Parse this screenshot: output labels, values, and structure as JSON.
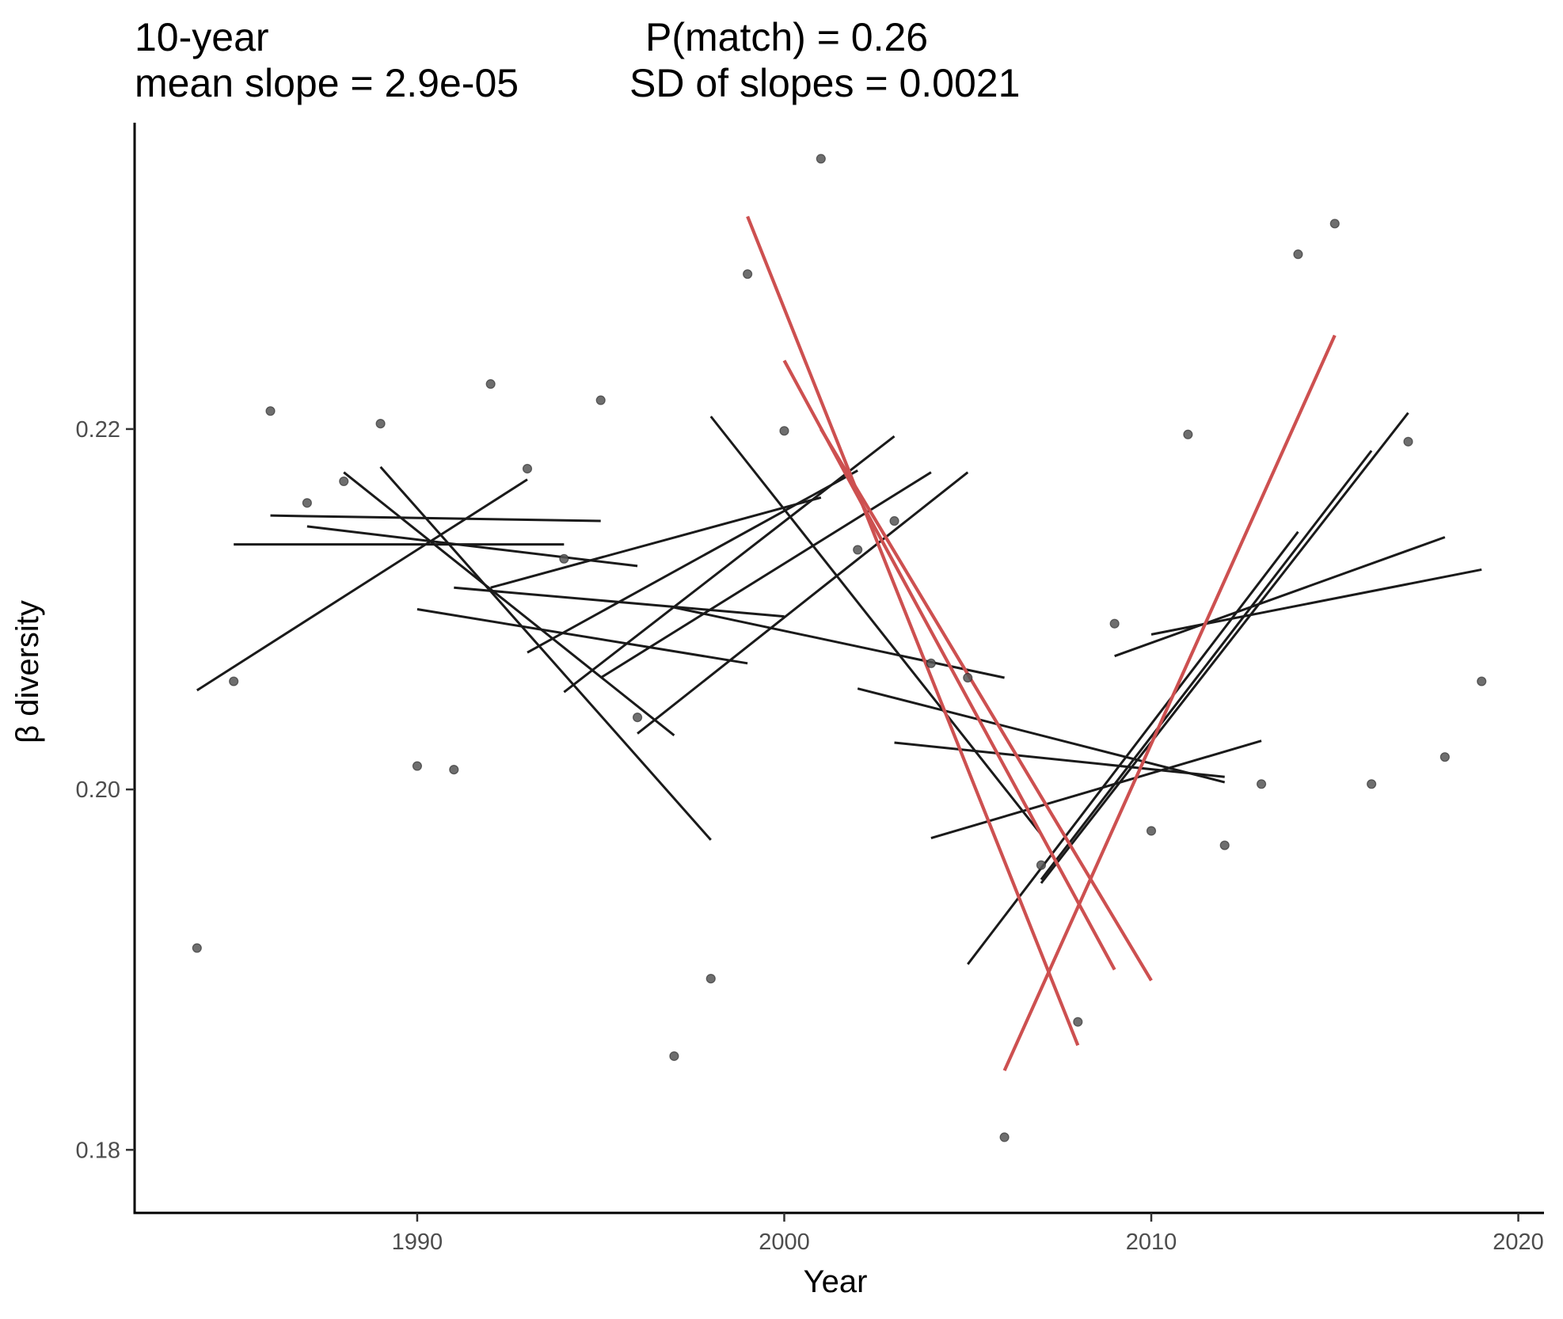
{
  "header": {
    "left1": "10-year",
    "right1": "P(match) = 0.26",
    "left2": "mean slope = 2.9e-05",
    "right2": "SD of slopes = 0.0021"
  },
  "chart_data": {
    "type": "scatter",
    "title": "",
    "xlabel": "Year",
    "ylabel": "β diversity",
    "xlim": [
      1982.3,
      2020.7
    ],
    "ylim": [
      0.1765,
      0.237
    ],
    "xticks": [
      1990,
      2000,
      2010,
      2020
    ],
    "yticks": [
      0.18,
      0.2,
      0.22
    ],
    "ytick_labels": [
      "0.18",
      "0.20",
      "0.22"
    ],
    "grid": false,
    "legend": "none",
    "colors": {
      "point": "#555555",
      "line": "#1a1a1a",
      "highlight": "#cd5050",
      "axis": "#000000"
    },
    "points": [
      {
        "x": 1984,
        "y": 0.1912
      },
      {
        "x": 1985,
        "y": 0.206
      },
      {
        "x": 1986,
        "y": 0.221
      },
      {
        "x": 1987,
        "y": 0.2159
      },
      {
        "x": 1988,
        "y": 0.2171
      },
      {
        "x": 1989,
        "y": 0.2203
      },
      {
        "x": 1990,
        "y": 0.2013
      },
      {
        "x": 1991,
        "y": 0.2011
      },
      {
        "x": 1992,
        "y": 0.2225
      },
      {
        "x": 1993,
        "y": 0.2178
      },
      {
        "x": 1994,
        "y": 0.2128
      },
      {
        "x": 1995,
        "y": 0.2216
      },
      {
        "x": 1996,
        "y": 0.204
      },
      {
        "x": 1997,
        "y": 0.1852
      },
      {
        "x": 1998,
        "y": 0.1895
      },
      {
        "x": 1999,
        "y": 0.2286
      },
      {
        "x": 2000,
        "y": 0.2199
      },
      {
        "x": 2001,
        "y": 0.235
      },
      {
        "x": 2002,
        "y": 0.2133
      },
      {
        "x": 2003,
        "y": 0.2149
      },
      {
        "x": 2004,
        "y": 0.207
      },
      {
        "x": 2005,
        "y": 0.2062
      },
      {
        "x": 2006,
        "y": 0.1807
      },
      {
        "x": 2007,
        "y": 0.1958
      },
      {
        "x": 2008,
        "y": 0.1871
      },
      {
        "x": 2009,
        "y": 0.2092
      },
      {
        "x": 2010,
        "y": 0.1977
      },
      {
        "x": 2011,
        "y": 0.2197
      },
      {
        "x": 2012,
        "y": 0.1969
      },
      {
        "x": 2013,
        "y": 0.2003
      },
      {
        "x": 2014,
        "y": 0.2297
      },
      {
        "x": 2015,
        "y": 0.2314
      },
      {
        "x": 2016,
        "y": 0.2003
      },
      {
        "x": 2017,
        "y": 0.2193
      },
      {
        "x": 2018,
        "y": 0.2018
      },
      {
        "x": 2019,
        "y": 0.206
      }
    ],
    "segments": [
      {
        "x0": 1984,
        "y0": 0.2055,
        "x1": 1993,
        "y1": 0.2172,
        "highlight": false
      },
      {
        "x0": 1985,
        "y0": 0.2136,
        "x1": 1994,
        "y1": 0.2136,
        "highlight": false
      },
      {
        "x0": 1986,
        "y0": 0.2152,
        "x1": 1995,
        "y1": 0.2149,
        "highlight": false
      },
      {
        "x0": 1987,
        "y0": 0.2146,
        "x1": 1996,
        "y1": 0.2124,
        "highlight": false
      },
      {
        "x0": 1988,
        "y0": 0.2176,
        "x1": 1997,
        "y1": 0.203,
        "highlight": false
      },
      {
        "x0": 1989,
        "y0": 0.2179,
        "x1": 1998,
        "y1": 0.1972,
        "highlight": false
      },
      {
        "x0": 1990,
        "y0": 0.21,
        "x1": 1999,
        "y1": 0.207,
        "highlight": false
      },
      {
        "x0": 1991,
        "y0": 0.2112,
        "x1": 2000,
        "y1": 0.2096,
        "highlight": false
      },
      {
        "x0": 1992,
        "y0": 0.2112,
        "x1": 2001,
        "y1": 0.2162,
        "highlight": false
      },
      {
        "x0": 1993,
        "y0": 0.2076,
        "x1": 2002,
        "y1": 0.2177,
        "highlight": false
      },
      {
        "x0": 1994,
        "y0": 0.2054,
        "x1": 2003,
        "y1": 0.2196,
        "highlight": false
      },
      {
        "x0": 1995,
        "y0": 0.2062,
        "x1": 2004,
        "y1": 0.2176,
        "highlight": false
      },
      {
        "x0": 1996,
        "y0": 0.2031,
        "x1": 2005,
        "y1": 0.2176,
        "highlight": false
      },
      {
        "x0": 1997,
        "y0": 0.2101,
        "x1": 2006,
        "y1": 0.2062,
        "highlight": false
      },
      {
        "x0": 1998,
        "y0": 0.2207,
        "x1": 2007,
        "y1": 0.1975,
        "highlight": false
      },
      {
        "x0": 1999,
        "y0": 0.2318,
        "x1": 2008,
        "y1": 0.1858,
        "highlight": true
      },
      {
        "x0": 2000,
        "y0": 0.2238,
        "x1": 2009,
        "y1": 0.19,
        "highlight": true
      },
      {
        "x0": 2001,
        "y0": 0.22,
        "x1": 2010,
        "y1": 0.1894,
        "highlight": true
      },
      {
        "x0": 2002,
        "y0": 0.2056,
        "x1": 2012,
        "y1": 0.2004,
        "highlight": false
      },
      {
        "x0": 2003,
        "y0": 0.2026,
        "x1": 2012,
        "y1": 0.2007,
        "highlight": false
      },
      {
        "x0": 2004,
        "y0": 0.1973,
        "x1": 2013,
        "y1": 0.2027,
        "highlight": false
      },
      {
        "x0": 2005,
        "y0": 0.1903,
        "x1": 2014,
        "y1": 0.2143,
        "highlight": false
      },
      {
        "x0": 2006,
        "y0": 0.1844,
        "x1": 2015,
        "y1": 0.2252,
        "highlight": true
      },
      {
        "x0": 2007,
        "y0": 0.195,
        "x1": 2016,
        "y1": 0.2188,
        "highlight": false
      },
      {
        "x0": 2007,
        "y0": 0.1948,
        "x1": 2017,
        "y1": 0.2209,
        "highlight": false
      },
      {
        "x0": 2009,
        "y0": 0.2074,
        "x1": 2018,
        "y1": 0.214,
        "highlight": false
      },
      {
        "x0": 2010,
        "y0": 0.2086,
        "x1": 2019,
        "y1": 0.2122,
        "highlight": false
      }
    ]
  }
}
